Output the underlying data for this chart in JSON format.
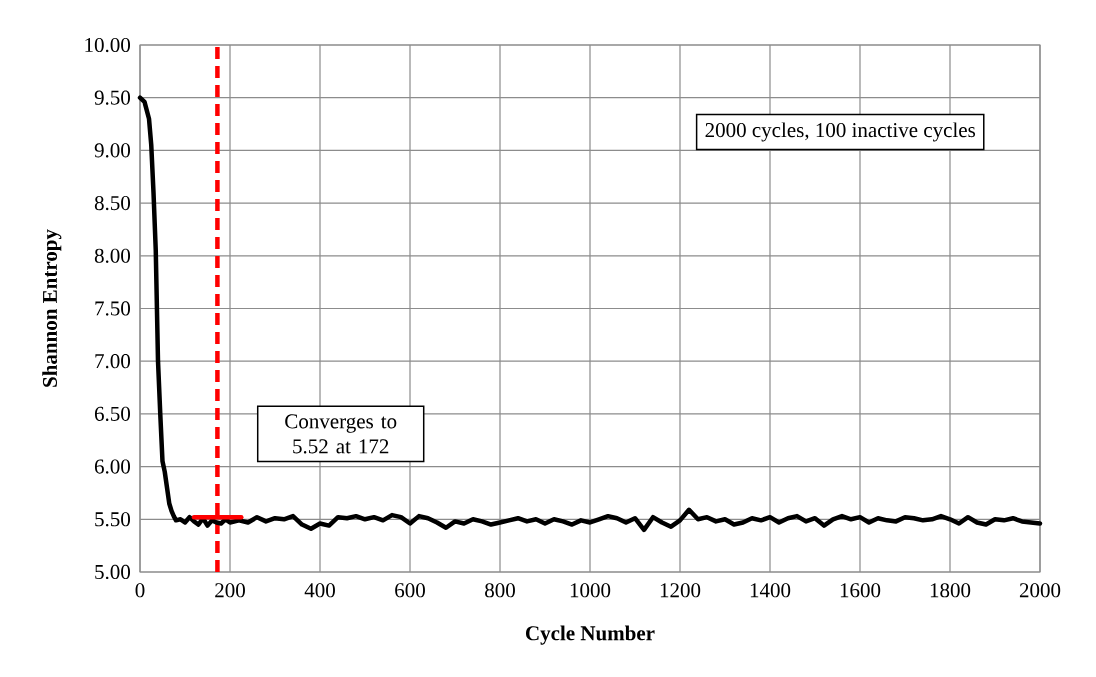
{
  "chart_data": {
    "type": "line",
    "xlabel": "Cycle Number",
    "ylabel": "Shannon Entropy",
    "x": [
      0,
      10,
      20,
      25,
      30,
      35,
      40,
      45,
      50,
      55,
      60,
      65,
      70,
      75,
      80,
      90,
      100,
      110,
      120,
      130,
      140,
      150,
      160,
      170,
      180,
      190,
      200,
      220,
      240,
      260,
      280,
      300,
      320,
      340,
      360,
      380,
      400,
      420,
      440,
      460,
      480,
      500,
      520,
      540,
      560,
      580,
      600,
      620,
      640,
      660,
      680,
      700,
      720,
      740,
      760,
      780,
      800,
      820,
      840,
      860,
      880,
      900,
      920,
      940,
      960,
      980,
      1000,
      1020,
      1040,
      1060,
      1080,
      1100,
      1120,
      1140,
      1160,
      1180,
      1200,
      1220,
      1240,
      1260,
      1280,
      1300,
      1320,
      1340,
      1360,
      1380,
      1400,
      1420,
      1440,
      1460,
      1480,
      1500,
      1520,
      1540,
      1560,
      1580,
      1600,
      1620,
      1640,
      1660,
      1680,
      1700,
      1720,
      1740,
      1760,
      1780,
      1800,
      1820,
      1840,
      1860,
      1880,
      1900,
      1920,
      1940,
      1960,
      1980,
      2000
    ],
    "series": [
      {
        "color": "#000000",
        "values": [
          9.5,
          9.46,
          9.3,
          9.05,
          8.6,
          8.05,
          7.0,
          6.5,
          6.05,
          5.95,
          5.8,
          5.65,
          5.58,
          5.53,
          5.49,
          5.5,
          5.47,
          5.52,
          5.48,
          5.45,
          5.51,
          5.44,
          5.49,
          5.47,
          5.46,
          5.5,
          5.47,
          5.49,
          5.47,
          5.52,
          5.48,
          5.51,
          5.5,
          5.53,
          5.45,
          5.41,
          5.46,
          5.44,
          5.52,
          5.51,
          5.53,
          5.5,
          5.52,
          5.49,
          5.54,
          5.52,
          5.46,
          5.53,
          5.51,
          5.47,
          5.42,
          5.48,
          5.46,
          5.5,
          5.48,
          5.45,
          5.47,
          5.49,
          5.51,
          5.48,
          5.5,
          5.46,
          5.5,
          5.48,
          5.45,
          5.49,
          5.47,
          5.5,
          5.53,
          5.51,
          5.47,
          5.51,
          5.4,
          5.52,
          5.47,
          5.43,
          5.49,
          5.59,
          5.5,
          5.52,
          5.48,
          5.5,
          5.45,
          5.47,
          5.51,
          5.49,
          5.52,
          5.47,
          5.51,
          5.53,
          5.48,
          5.51,
          5.44,
          5.5,
          5.53,
          5.5,
          5.52,
          5.47,
          5.51,
          5.49,
          5.48,
          5.52,
          5.51,
          5.49,
          5.5,
          5.53,
          5.5,
          5.46,
          5.52,
          5.47,
          5.45,
          5.5,
          5.49,
          5.51,
          5.48,
          5.47,
          5.46
        ]
      },
      {
        "type": "line",
        "color": "#ff0000",
        "x": [
          120,
          225
        ],
        "values": [
          5.52,
          5.52
        ]
      }
    ],
    "xlim": [
      0,
      2000
    ],
    "xticks": [
      0,
      200,
      400,
      600,
      800,
      1000,
      1200,
      1400,
      1600,
      1800,
      2000
    ],
    "ylim": [
      5,
      10
    ],
    "yticks": [
      {
        "value": 5,
        "label": "5.00"
      },
      {
        "value": 5.5,
        "label": "5.50"
      },
      {
        "value": 6,
        "label": "6.00"
      },
      {
        "value": 6.5,
        "label": "6.50"
      },
      {
        "value": 7,
        "label": "7.00"
      },
      {
        "value": 7.5,
        "label": "7.50"
      },
      {
        "value": 8,
        "label": "8.00"
      },
      {
        "value": 8.5,
        "label": "8.50"
      },
      {
        "value": 9,
        "label": "9.00"
      },
      {
        "value": 9.5,
        "label": "9.50"
      },
      {
        "value": 10,
        "label": "10.00"
      }
    ],
    "grid": true,
    "ref_lines": [
      {
        "axis": "x",
        "value": 172,
        "color": "#ff0000",
        "line_style": "dashed"
      }
    ],
    "annotations": [
      "Converges to 5.52 at 172",
      "2000 cycles, 100 inactive cycles"
    ]
  }
}
